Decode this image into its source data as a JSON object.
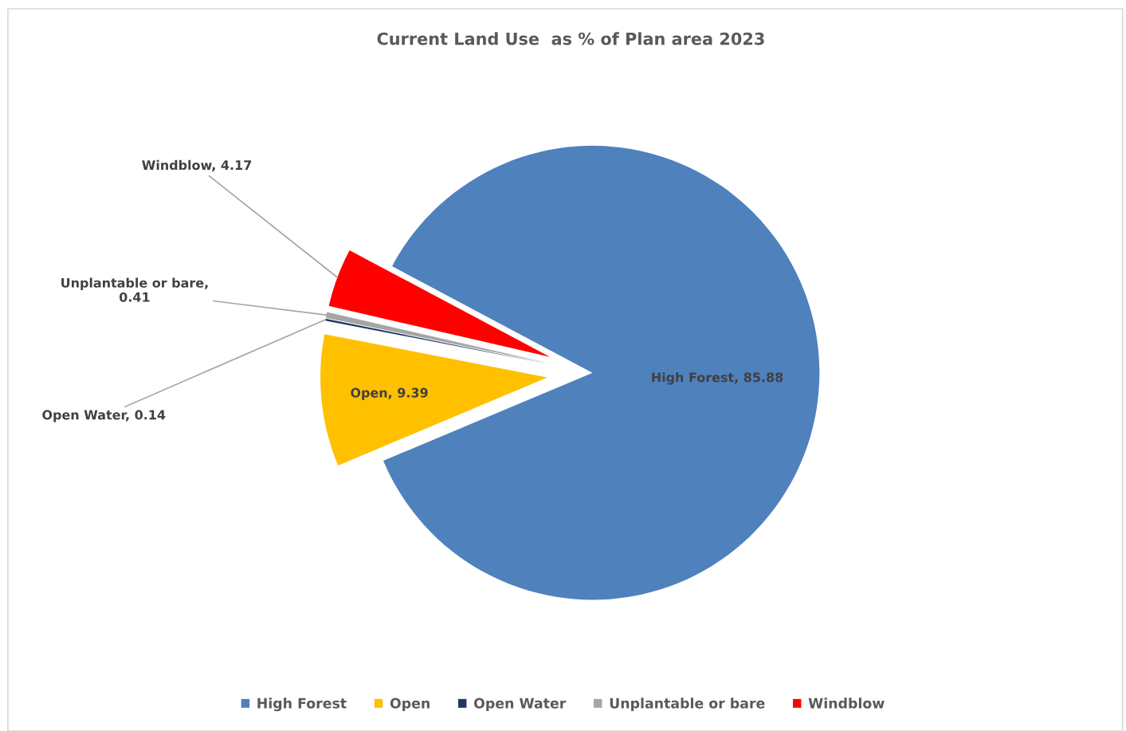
{
  "chart_data": {
    "type": "pie",
    "title": "Current Land Use  as % of Plan area 2023",
    "categories": [
      "High Forest",
      "Open",
      "Open Water",
      "Unplantable or bare",
      "Windblow"
    ],
    "values": [
      85.88,
      9.39,
      0.14,
      0.41,
      4.17
    ],
    "colors": [
      "#4f81bd",
      "#ffc000",
      "#1f3864",
      "#a5a5a5",
      "#ff0000"
    ],
    "value_labels": [
      "High Forest, 85.88",
      "Open, 9.39",
      "Open Water, 0.14",
      "Unplantable or bare, 0.41",
      "Windblow, 4.17"
    ],
    "legend": "bottom"
  }
}
